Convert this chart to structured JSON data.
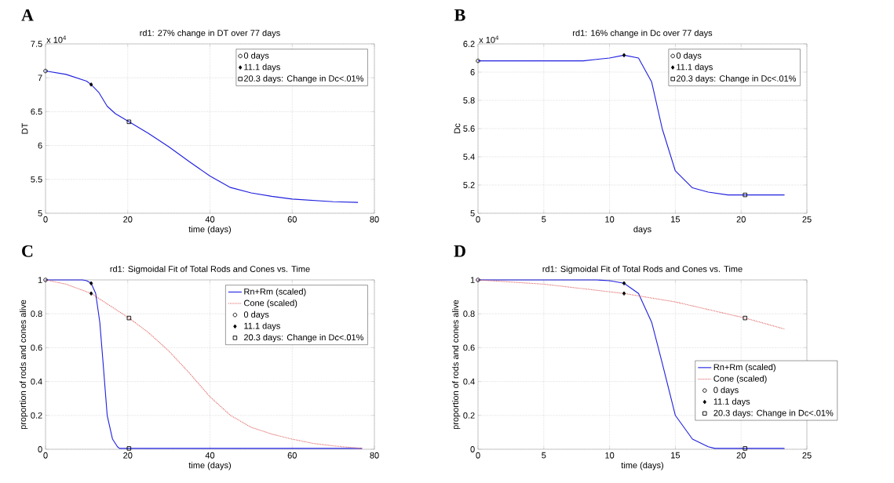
{
  "chart_data": [
    {
      "type": "line",
      "title": "rd1: 27% change in DT over 77 days",
      "xlabel": "time (days)",
      "ylabel": "DT",
      "annotations": [
        "A",
        "x 10$^{4}$"
      ],
      "xlim": [
        0,
        80
      ],
      "ylim": [
        5,
        7.5
      ],
      "xticks": [
        0,
        20,
        40,
        60,
        80
      ],
      "yticks": [
        5,
        5.5,
        6,
        6.5,
        7,
        7.5
      ],
      "grid": true,
      "legend": "top right",
      "series": [
        {
          "color": "#1f1fdf",
          "line_style": "solid",
          "marker": "none",
          "x": [
            0,
            5,
            10,
            11.1,
            13,
            15,
            17,
            20.3,
            25,
            30,
            35,
            40,
            45,
            50,
            55,
            60,
            65,
            70,
            76
          ],
          "values": [
            7.1,
            7.05,
            6.95,
            6.9,
            6.78,
            6.58,
            6.47,
            6.35,
            6.18,
            5.98,
            5.76,
            5.55,
            5.38,
            5.3,
            5.25,
            5.21,
            5.19,
            5.17,
            5.16
          ]
        },
        {
          "type": "scatter",
          "name": "0 days",
          "color": "#000000",
          "marker": "circle",
          "x": [
            0
          ],
          "values": [
            7.1
          ]
        },
        {
          "type": "scatter",
          "name": "11.1 days",
          "color": "#000000",
          "marker": "diamond",
          "x": [
            11.1
          ],
          "values": [
            6.9
          ]
        },
        {
          "type": "scatter",
          "name": "20.3 days: Change in Dc<.01%",
          "color": "#000000",
          "marker": "square",
          "x": [
            20.3
          ],
          "values": [
            6.35
          ]
        }
      ]
    },
    {
      "type": "line",
      "title": "rd1: 16% change in Dc over 77 days",
      "xlabel": "days",
      "ylabel": "Dc",
      "annotations": [
        "B",
        "x 10$^{4}$"
      ],
      "xlim": [
        0,
        25
      ],
      "ylim": [
        5,
        6.2
      ],
      "xticks": [
        0,
        5,
        10,
        15,
        20,
        25
      ],
      "yticks": [
        5,
        5.2,
        5.4,
        5.6,
        5.8,
        6,
        6.2
      ],
      "grid": true,
      "legend": "top right",
      "series": [
        {
          "color": "#1f1fdf",
          "line_style": "solid",
          "marker": "none",
          "x": [
            0,
            8,
            9,
            10,
            11.1,
            12.2,
            13.2,
            14,
            15,
            16.3,
            17.5,
            19,
            20.3,
            23.3
          ],
          "values": [
            6.08,
            6.08,
            6.09,
            6.1,
            6.12,
            6.1,
            5.93,
            5.6,
            5.3,
            5.18,
            5.15,
            5.13,
            5.13,
            5.13
          ]
        },
        {
          "type": "scatter",
          "name": "0 days",
          "color": "#000000",
          "marker": "circle",
          "x": [
            0
          ],
          "values": [
            6.08
          ]
        },
        {
          "type": "scatter",
          "name": "11.1 days",
          "color": "#000000",
          "marker": "diamond",
          "x": [
            11.1
          ],
          "values": [
            6.12
          ]
        },
        {
          "type": "scatter",
          "name": "20.3 days: Change in Dc<.01%",
          "color": "#000000",
          "marker": "square",
          "x": [
            20.3
          ],
          "values": [
            5.13
          ]
        }
      ]
    },
    {
      "type": "line",
      "title": "rd1: Sigmoidal Fit of Total Rods and Cones vs. Time",
      "xlabel": "time (days)",
      "ylabel": "proportion of rods and cones alive",
      "annotations": [
        "C"
      ],
      "xlim": [
        0,
        80
      ],
      "ylim": [
        0,
        1
      ],
      "xticks": [
        0,
        20,
        40,
        60,
        80
      ],
      "yticks": [
        0,
        0.2,
        0.4,
        0.6,
        0.8,
        1
      ],
      "grid": true,
      "legend": "top right",
      "series": [
        {
          "name": "Rn+Rm (scaled)",
          "color": "#1f1fdf",
          "line_style": "solid",
          "marker": "none",
          "x": [
            0,
            9,
            10,
            11.1,
            12.2,
            13.2,
            14,
            15,
            16.3,
            17.5,
            18,
            20.3,
            40,
            77
          ],
          "values": [
            1,
            1,
            0.995,
            0.98,
            0.92,
            0.75,
            0.51,
            0.2,
            0.06,
            0.015,
            0.005,
            0.005,
            0.005,
            0.005
          ]
        },
        {
          "name": "Cone (scaled)",
          "color": "#e06060",
          "line_style": "dotted",
          "marker": "none",
          "x": [
            0,
            5,
            11.1,
            20.3,
            25,
            30,
            35,
            40,
            45,
            50,
            55,
            60,
            65,
            70,
            77
          ],
          "values": [
            1,
            0.975,
            0.92,
            0.775,
            0.69,
            0.58,
            0.45,
            0.31,
            0.2,
            0.13,
            0.09,
            0.06,
            0.035,
            0.02,
            0.005
          ]
        },
        {
          "type": "scatter",
          "name": "0 days",
          "color": "#000000",
          "marker": "circle",
          "x": [
            0
          ],
          "values": [
            1
          ]
        },
        {
          "type": "scatter",
          "name": "11.1 days",
          "color": "#000000",
          "marker": "diamond",
          "x": [
            11.1,
            11.1
          ],
          "values": [
            0.98,
            0.92
          ]
        },
        {
          "type": "scatter",
          "name": "20.3 days: Change in Dc<.01%",
          "color": "#000000",
          "marker": "square",
          "x": [
            20.3,
            20.3
          ],
          "values": [
            0.775,
            0.005
          ]
        }
      ]
    },
    {
      "type": "line",
      "title": "rd1: Sigmoidal Fit of Total Rods and Cones vs. Time",
      "xlabel": "time (days)",
      "ylabel": "proportion of rods and cones alive",
      "annotations": [
        "D"
      ],
      "xlim": [
        0,
        25
      ],
      "ylim": [
        0,
        1
      ],
      "xticks": [
        0,
        5,
        10,
        15,
        20,
        25
      ],
      "yticks": [
        0,
        0.2,
        0.4,
        0.6,
        0.8,
        1
      ],
      "grid": true,
      "legend": "right",
      "series": [
        {
          "name": "Rn+Rm (scaled)",
          "color": "#1f1fdf",
          "line_style": "solid",
          "marker": "none",
          "x": [
            0,
            9,
            10,
            11.1,
            12.2,
            13.2,
            14,
            15,
            16.3,
            17.5,
            18,
            20.3,
            23.3
          ],
          "values": [
            1,
            1,
            0.995,
            0.98,
            0.92,
            0.75,
            0.51,
            0.2,
            0.06,
            0.015,
            0.005,
            0.005,
            0.005
          ]
        },
        {
          "name": "Cone (scaled)",
          "color": "#e06060",
          "line_style": "dotted",
          "marker": "none",
          "x": [
            0,
            5,
            11.1,
            15,
            20.3,
            23.3
          ],
          "values": [
            1,
            0.975,
            0.92,
            0.87,
            0.775,
            0.71
          ]
        },
        {
          "type": "scatter",
          "name": "0 days",
          "color": "#000000",
          "marker": "circle",
          "x": [
            0
          ],
          "values": [
            1
          ]
        },
        {
          "type": "scatter",
          "name": "11.1 days",
          "color": "#000000",
          "marker": "diamond",
          "x": [
            11.1,
            11.1
          ],
          "values": [
            0.98,
            0.92
          ]
        },
        {
          "type": "scatter",
          "name": "20.3 days: Change in Dc<.01%",
          "color": "#000000",
          "marker": "square",
          "x": [
            20.3,
            20.3
          ],
          "values": [
            0.775,
            0.005
          ]
        }
      ]
    }
  ]
}
